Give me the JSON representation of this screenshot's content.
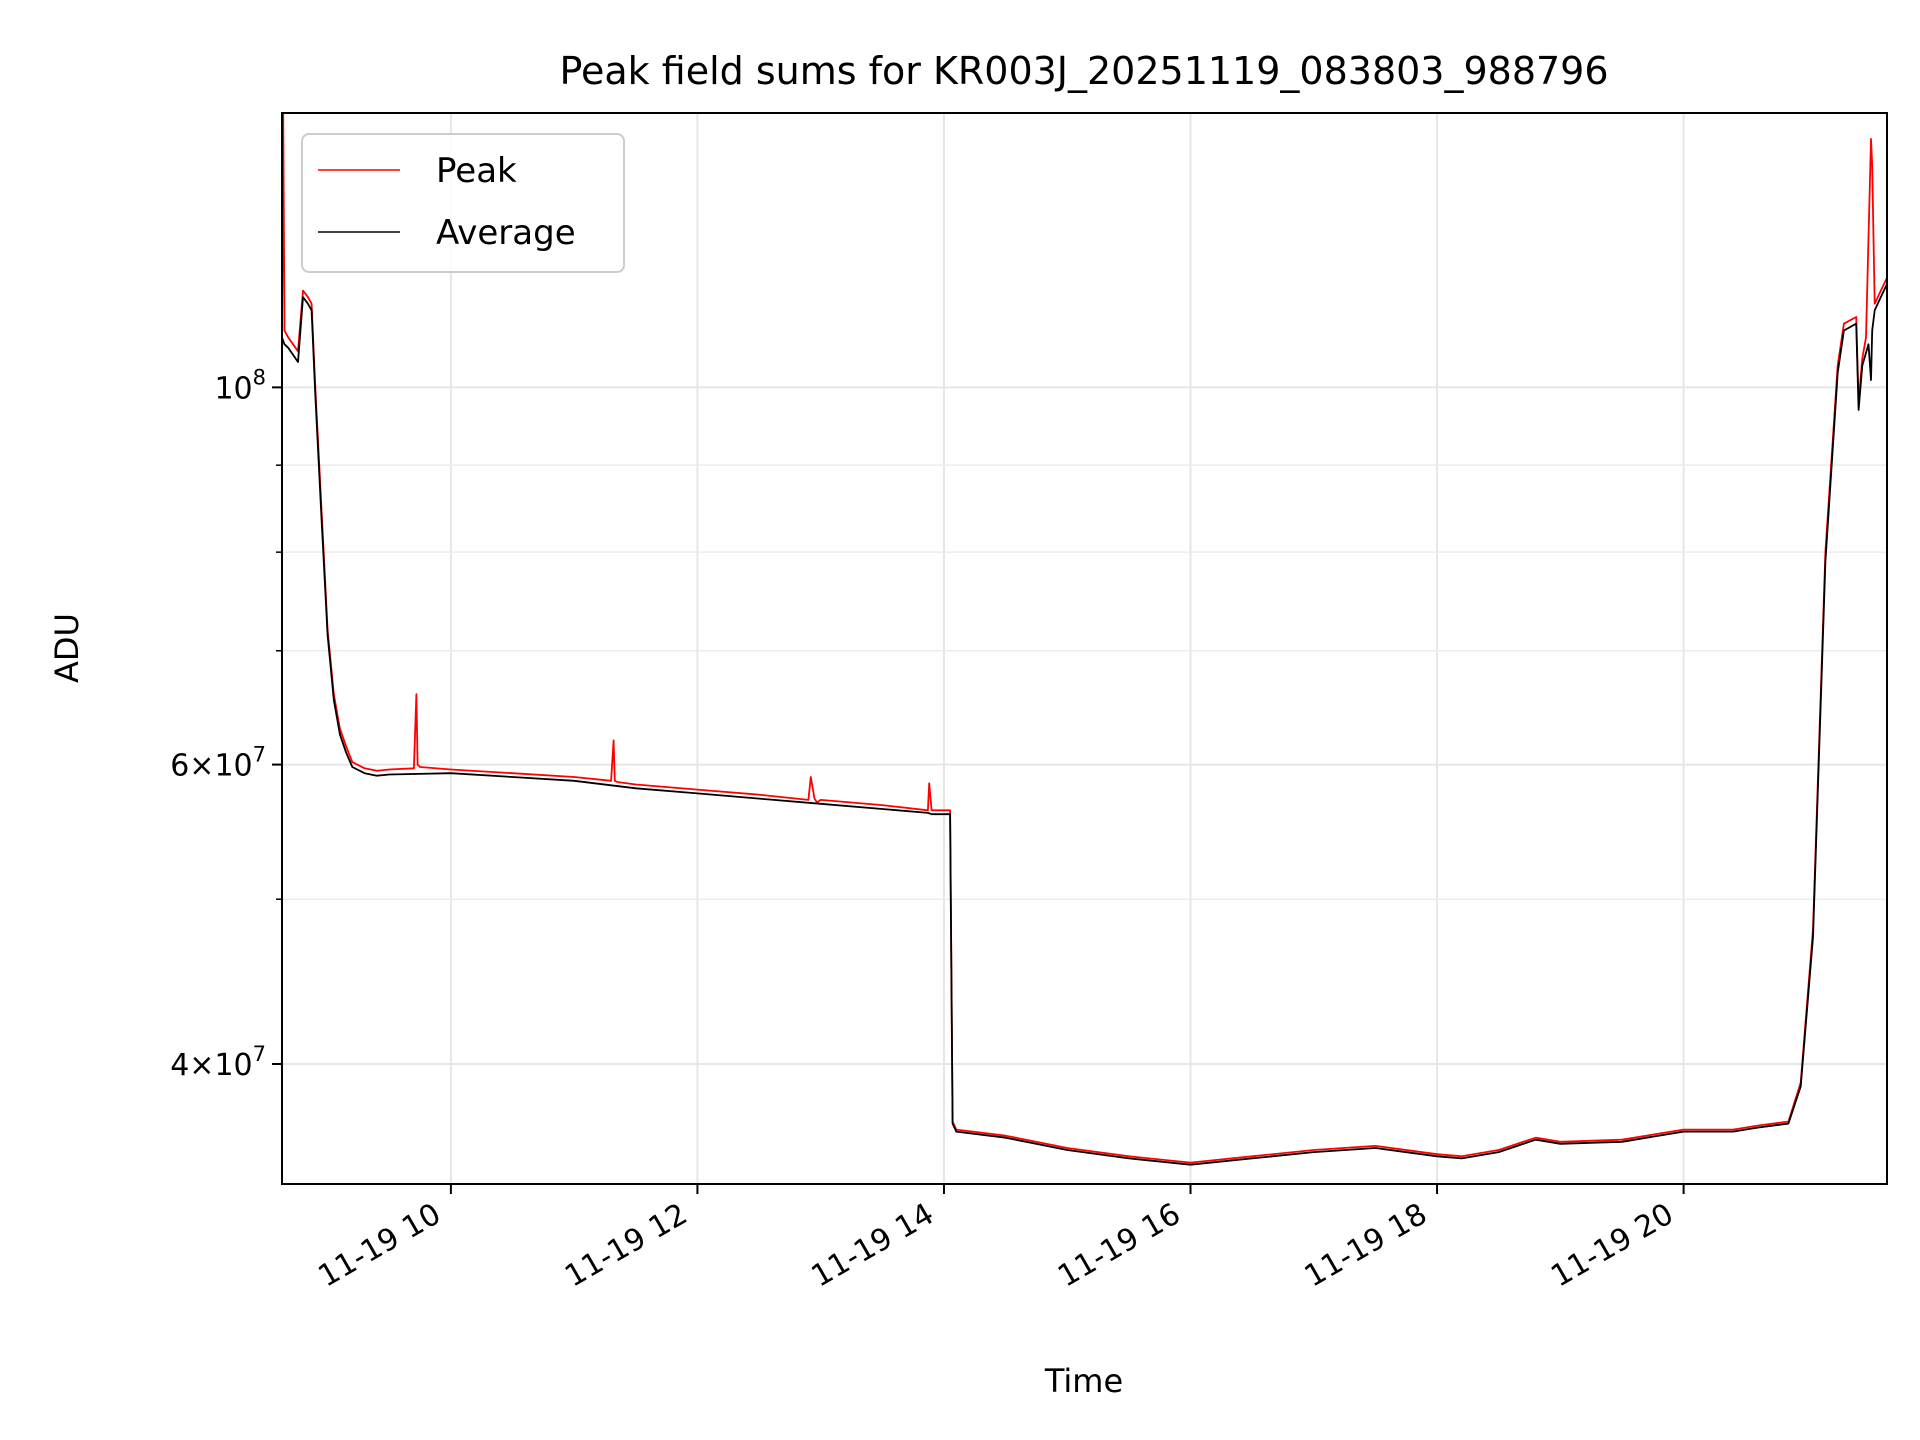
{
  "chart_data": {
    "type": "line",
    "title": "Peak field sums for KR003J_20251119_083803_988796",
    "xlabel": "Time",
    "ylabel": "ADU",
    "yscale": "log",
    "xlim": [
      8.63,
      21.65
    ],
    "ylim": [
      34000000,
      145000000
    ],
    "grid": true,
    "legend_position": "upper-left",
    "x_ticks": [
      {
        "value": 10,
        "label": "11-19 10"
      },
      {
        "value": 12,
        "label": "11-19 12"
      },
      {
        "value": 14,
        "label": "11-19 14"
      },
      {
        "value": 16,
        "label": "11-19 16"
      },
      {
        "value": 18,
        "label": "11-19 18"
      },
      {
        "value": 20,
        "label": "11-19 20"
      }
    ],
    "y_major_ticks": [
      {
        "value": 40000000,
        "base": "4×10",
        "exp": "7"
      },
      {
        "value": 60000000,
        "base": "6×10",
        "exp": "7"
      },
      {
        "value": 100000000,
        "base": "10",
        "exp": "8"
      }
    ],
    "y_minor_ticks": [
      50000000,
      70000000,
      80000000,
      90000000
    ],
    "series": [
      {
        "name": "Peak",
        "color": "#ff0000",
        "x": [
          8.63,
          8.64,
          8.65,
          8.68,
          8.72,
          8.76,
          8.8,
          8.84,
          8.87,
          8.9,
          8.95,
          9.0,
          9.05,
          9.1,
          9.15,
          9.2,
          9.3,
          9.4,
          9.5,
          9.7,
          9.72,
          9.73,
          9.75,
          10.0,
          10.5,
          11.0,
          11.3,
          11.32,
          11.33,
          11.35,
          11.5,
          12.0,
          12.5,
          12.9,
          12.92,
          12.95,
          12.97,
          13.0,
          13.5,
          13.87,
          13.88,
          13.9,
          14.05,
          14.07,
          14.1,
          14.5,
          15.0,
          15.5,
          16.0,
          16.5,
          17.0,
          17.5,
          18.0,
          18.2,
          18.5,
          18.8,
          19.0,
          19.5,
          20.0,
          20.4,
          20.6,
          20.85,
          20.95,
          21.05,
          21.15,
          21.25,
          21.3,
          21.4,
          21.42,
          21.45,
          21.47,
          21.48,
          21.52,
          21.53,
          21.55,
          21.6,
          21.65
        ],
        "y": [
          108000000,
          145000000,
          108000000,
          107000000,
          106000000,
          105000000,
          114000000,
          113000000,
          112000000,
          100000000,
          85000000,
          72000000,
          66000000,
          63000000,
          61500000,
          60200000,
          59700000,
          59500000,
          59600000,
          59700000,
          66000000,
          60000000,
          59800000,
          59600000,
          59300000,
          59000000,
          58700000,
          62000000,
          58700000,
          58600000,
          58400000,
          58000000,
          57600000,
          57200000,
          59000000,
          57300000,
          57000000,
          57200000,
          56800000,
          56400000,
          58500000,
          56400000,
          56400000,
          37000000,
          36600000,
          36300000,
          35700000,
          35300000,
          35000000,
          35300000,
          35600000,
          35800000,
          35400000,
          35300000,
          35600000,
          36200000,
          36000000,
          36100000,
          36600000,
          36600000,
          36800000,
          37000000,
          39000000,
          48000000,
          80000000,
          103000000,
          109000000,
          110000000,
          98000000,
          104000000,
          106000000,
          107000000,
          140000000,
          135000000,
          112000000,
          114000000,
          116000000
        ]
      },
      {
        "name": "Average",
        "color": "#000000",
        "x": [
          8.63,
          8.65,
          8.68,
          8.72,
          8.76,
          8.8,
          8.84,
          8.87,
          8.9,
          8.95,
          9.0,
          9.05,
          9.1,
          9.15,
          9.2,
          9.3,
          9.4,
          9.5,
          10.0,
          10.5,
          11.0,
          11.5,
          12.0,
          12.5,
          13.0,
          13.5,
          13.87,
          13.9,
          14.05,
          14.07,
          14.1,
          14.5,
          15.0,
          15.5,
          16.0,
          16.5,
          17.0,
          17.5,
          18.0,
          18.2,
          18.5,
          18.8,
          19.0,
          19.5,
          20.0,
          20.4,
          20.6,
          20.85,
          20.95,
          21.05,
          21.15,
          21.25,
          21.3,
          21.4,
          21.42,
          21.45,
          21.5,
          21.52,
          21.53,
          21.55,
          21.6,
          21.65
        ],
        "y": [
          107000000,
          106000000,
          105500000,
          104500000,
          103500000,
          113000000,
          112000000,
          111000000,
          99000000,
          84000000,
          71500000,
          65500000,
          62500000,
          61000000,
          59800000,
          59300000,
          59100000,
          59200000,
          59300000,
          59000000,
          58700000,
          58100000,
          57700000,
          57300000,
          56900000,
          56500000,
          56200000,
          56100000,
          56100000,
          36900000,
          36500000,
          36200000,
          35600000,
          35200000,
          34900000,
          35200000,
          35500000,
          35700000,
          35300000,
          35200000,
          35500000,
          36100000,
          35900000,
          36000000,
          36500000,
          36500000,
          36700000,
          36900000,
          38800000,
          47500000,
          79000000,
          102000000,
          108000000,
          109000000,
          97000000,
          103000000,
          106000000,
          101000000,
          108000000,
          111000000,
          113000000,
          115000000
        ]
      }
    ]
  }
}
